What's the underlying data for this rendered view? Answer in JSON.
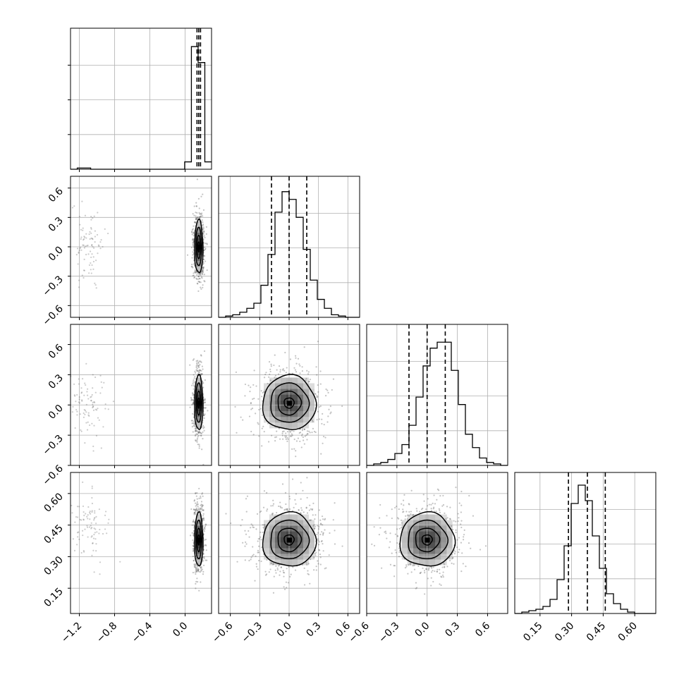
{
  "chart_data": {
    "type": "corner",
    "title": "",
    "grid": true,
    "parameters": [
      {
        "range": [
          -1.3,
          0.3
        ],
        "tick_values": [
          -1.2,
          -0.8,
          -0.4,
          0.0
        ],
        "tick_labels": [
          "−1.2",
          "−0.8",
          "−0.4",
          "0.0"
        ],
        "quantiles": [
          0.135,
          0.155,
          0.175
        ]
      },
      {
        "range": [
          -0.72,
          0.72
        ],
        "tick_values": [
          -0.6,
          -0.3,
          0.0,
          0.3,
          0.6
        ],
        "tick_labels": [
          "−0.6",
          "−0.3",
          "0.0",
          "0.3",
          "0.6"
        ],
        "quantiles": [
          -0.18,
          0.0,
          0.18
        ]
      },
      {
        "range": [
          -0.6,
          0.8
        ],
        "tick_values": [
          -0.6,
          -0.3,
          0.0,
          0.3,
          0.6
        ],
        "tick_labels": [
          "−0.6",
          "−0.3",
          "0.0",
          "0.3",
          "0.6"
        ],
        "quantiles": [
          -0.18,
          0.0,
          0.18
        ]
      },
      {
        "range": [
          0.03,
          0.7
        ],
        "tick_values": [
          0.15,
          0.3,
          0.45,
          0.6
        ],
        "tick_labels": [
          "0.15",
          "0.30",
          "0.45",
          "0.60"
        ],
        "quantiles": [
          0.285,
          0.375,
          0.46
        ]
      }
    ],
    "histograms": [
      {
        "bins": [
          -1.3,
          0.3
        ],
        "counts": [
          0,
          1,
          1,
          0,
          0,
          0,
          0,
          0,
          0,
          0,
          0,
          0,
          0,
          0,
          0,
          0,
          0,
          6,
          100,
          87,
          6
        ],
        "ymax": 115
      },
      {
        "counts": [
          0,
          1,
          2,
          4,
          7,
          11,
          25,
          49,
          82,
          98,
          92,
          78,
          53,
          29,
          14,
          7,
          2,
          1,
          0,
          0
        ],
        "ymax": 110
      },
      {
        "counts": [
          0,
          1,
          2,
          4,
          8,
          14,
          27,
          46,
          67,
          79,
          83,
          83,
          64,
          41,
          21,
          12,
          5,
          2,
          1,
          0
        ],
        "ymax": 95
      },
      {
        "counts": [
          0,
          1,
          2,
          3,
          5,
          10,
          24,
          48,
          78,
          91,
          80,
          55,
          32,
          14,
          7,
          3,
          1,
          0,
          0,
          0
        ],
        "ymax": 100
      }
    ],
    "pairs": [
      {
        "x": 0,
        "y": 1,
        "center": [
          0.155,
          0.0
        ],
        "spread": [
          0.03,
          0.17
        ],
        "outliers": {
          "center": [
            -1.1,
            0.02
          ],
          "spread": [
            0.1,
            0.18
          ]
        }
      },
      {
        "x": 0,
        "y": 2,
        "center": [
          0.155,
          0.02
        ],
        "spread": [
          0.03,
          0.17
        ],
        "outliers": {
          "center": [
            -1.1,
            0.02
          ],
          "spread": [
            0.1,
            0.18
          ]
        }
      },
      {
        "x": 0,
        "y": 3,
        "center": [
          0.155,
          0.38
        ],
        "spread": [
          0.03,
          0.08
        ],
        "outliers": {
          "center": [
            -1.1,
            0.45
          ],
          "spread": [
            0.1,
            0.08
          ]
        }
      },
      {
        "x": 1,
        "y": 2,
        "center": [
          0.0,
          0.02
        ],
        "spread": [
          0.17,
          0.17
        ]
      },
      {
        "x": 1,
        "y": 3,
        "center": [
          0.0,
          0.38
        ],
        "spread": [
          0.17,
          0.08
        ]
      },
      {
        "x": 2,
        "y": 3,
        "center": [
          0.0,
          0.38
        ],
        "spread": [
          0.17,
          0.08
        ]
      }
    ]
  }
}
